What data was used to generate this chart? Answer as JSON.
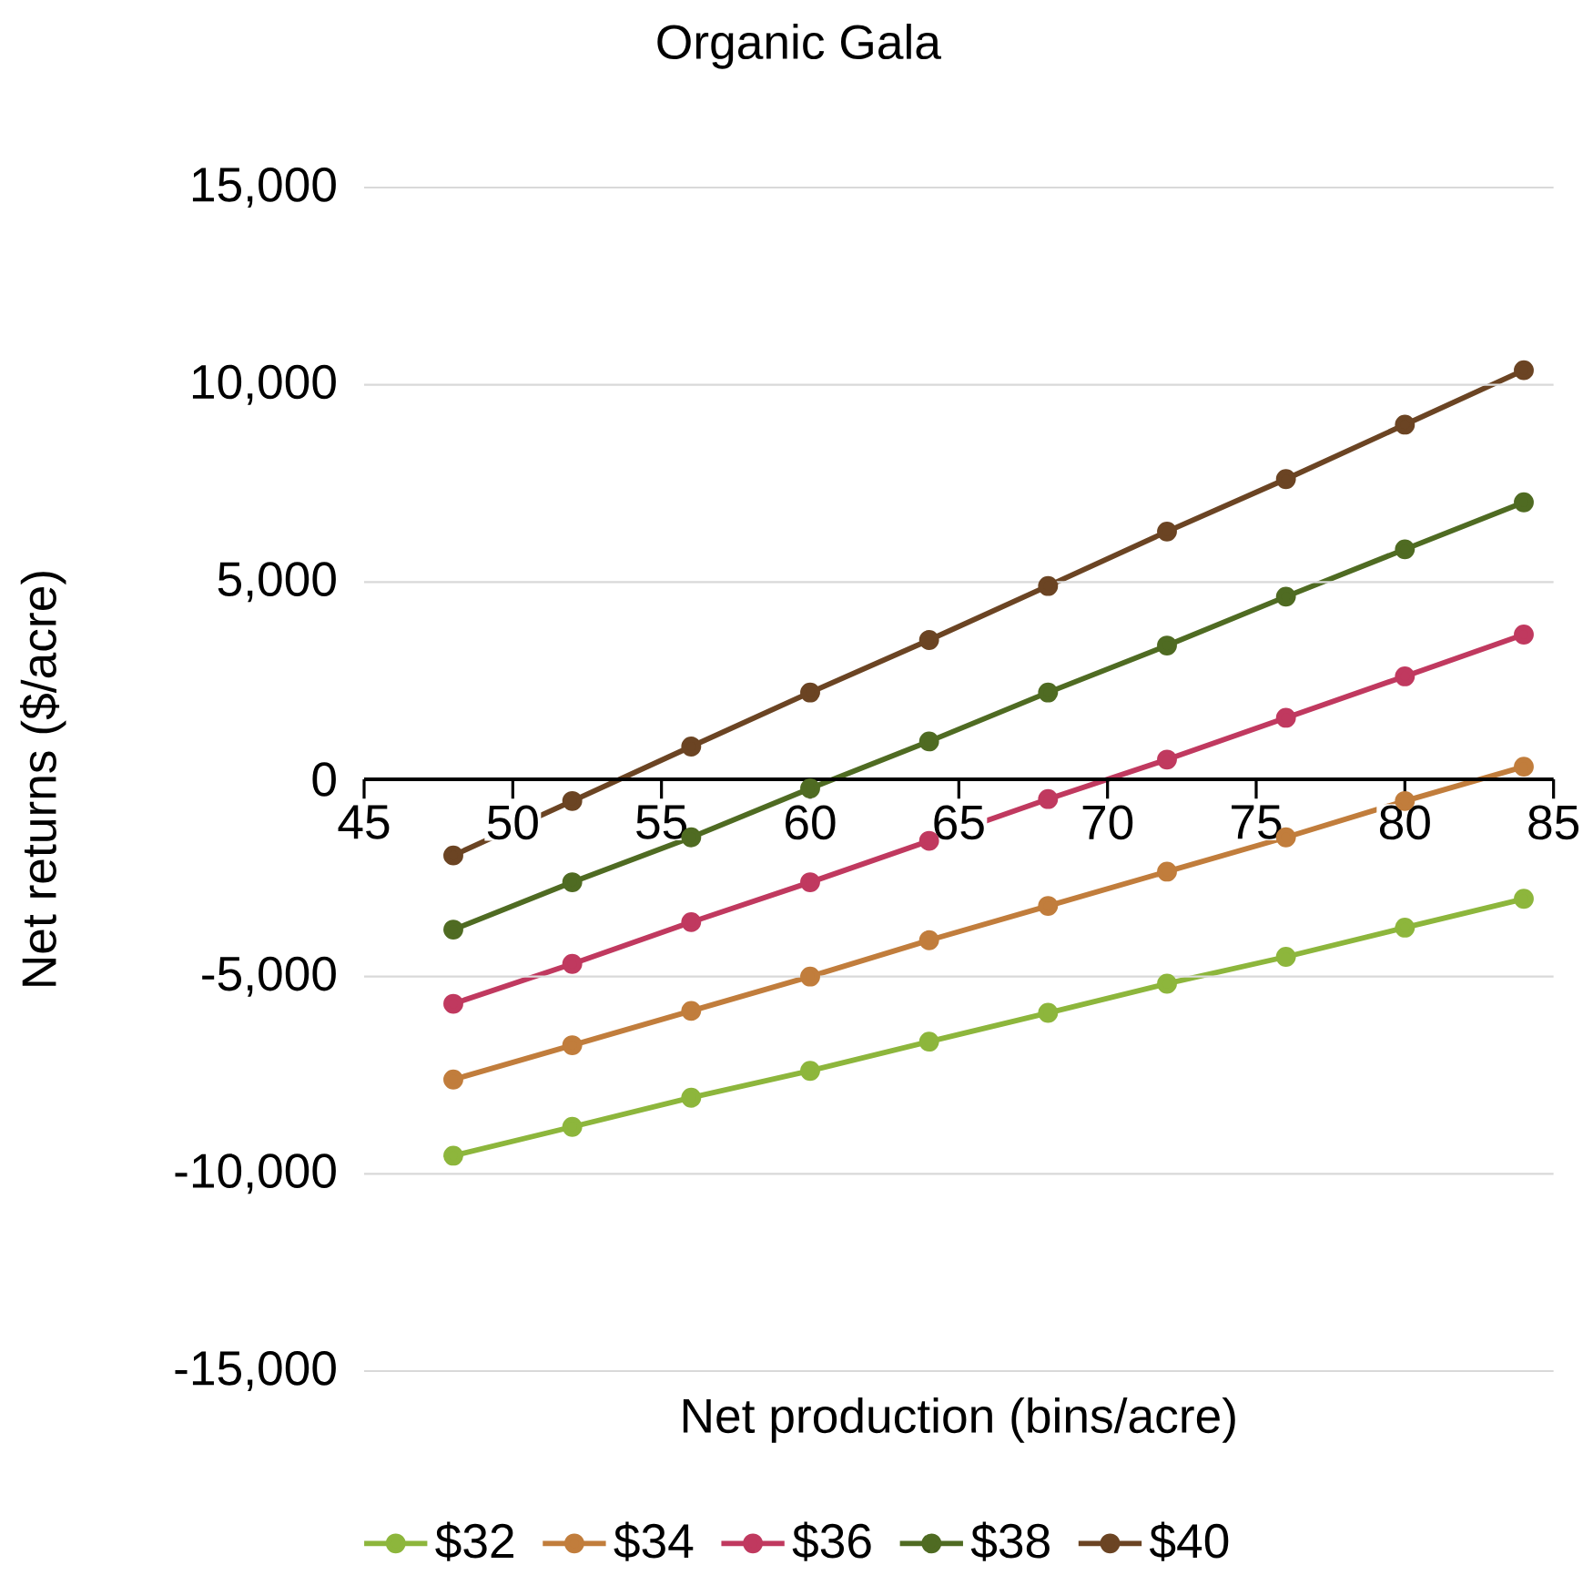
{
  "chart_data": {
    "type": "line",
    "title": "Organic Gala",
    "xlabel": "Net production (bins/acre)",
    "ylabel": "Net returns ($/acre)",
    "x": [
      48,
      52,
      56,
      60,
      64,
      68,
      72,
      76,
      80,
      84
    ],
    "series": [
      {
        "name": "$32",
        "color": "#8db63c",
        "values": [
          -9540,
          -8810,
          -8070,
          -7390,
          -6650,
          -5920,
          -5180,
          -4500,
          -3760,
          -3030
        ]
      },
      {
        "name": "$34",
        "color": "#c17d3c",
        "values": [
          -7610,
          -6740,
          -5870,
          -5000,
          -4080,
          -3210,
          -2340,
          -1470,
          -550,
          320
        ]
      },
      {
        "name": "$36",
        "color": "#c0395f",
        "values": [
          -5690,
          -4680,
          -3620,
          -2610,
          -1560,
          -500,
          500,
          1560,
          2610,
          3670
        ]
      },
      {
        "name": "$38",
        "color": "#4f6b22",
        "values": [
          -3810,
          -2610,
          -1470,
          -230,
          960,
          2200,
          3390,
          4630,
          5830,
          7020
        ]
      },
      {
        "name": "$40",
        "color": "#6b4423",
        "values": [
          -1930,
          -550,
          830,
          2200,
          3530,
          4900,
          6280,
          7610,
          8990,
          10370
        ]
      }
    ],
    "xlim": [
      45,
      85
    ],
    "ylim": [
      -15000,
      15000
    ],
    "xticks": [
      45,
      50,
      55,
      60,
      65,
      70,
      75,
      80,
      85
    ],
    "yticks": [
      {
        "value": -15000,
        "label": "-15,000"
      },
      {
        "value": -10000,
        "label": "-10,000"
      },
      {
        "value": -5000,
        "label": "-5,000"
      },
      {
        "value": 0,
        "label": "0"
      },
      {
        "value": 5000,
        "label": "5,000"
      },
      {
        "value": 10000,
        "label": "10,000"
      },
      {
        "value": 15000,
        "label": "15,000"
      }
    ],
    "grid": "y",
    "legend": "bottom",
    "marker": "circle",
    "line_style": "solid"
  }
}
